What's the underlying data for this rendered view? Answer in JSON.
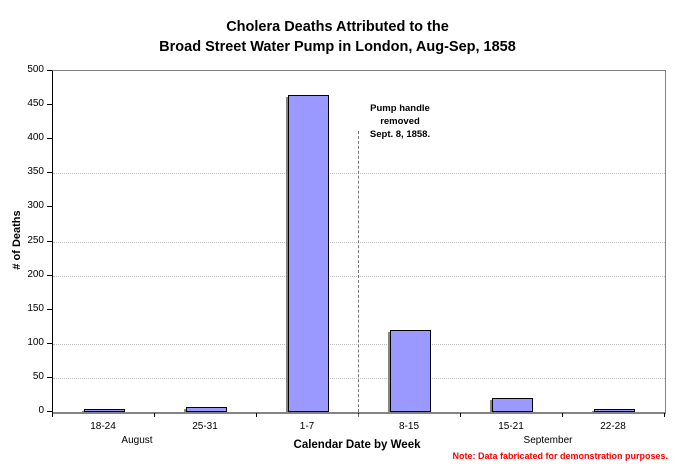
{
  "title": {
    "line1": "Cholera Deaths Attributed to the",
    "line2": "Broad Street Water Pump in London, Aug-Sep, 1858"
  },
  "chart_data": {
    "type": "bar",
    "title": "Cholera Deaths Attributed to the Broad Street Water Pump in London, Aug-Sep, 1858",
    "categories": [
      "18-24",
      "25-31",
      "1-7",
      "8-15",
      "15-21",
      "22-28"
    ],
    "values": [
      5,
      8,
      465,
      120,
      20,
      5
    ],
    "xlabel": "Calendar Date by Week",
    "ylabel": "# of Deaths",
    "ylim": [
      0,
      500
    ],
    "ytick_step": 50,
    "gridlines_at": [
      50,
      100,
      200,
      250,
      350
    ],
    "grid_style": "dotted",
    "legend": "none",
    "bar_color": "#9999FF",
    "bar_border_color": "#000000",
    "bar_shadow_color": "#848484",
    "month_groups": [
      {
        "label": "August",
        "weeks": [
          "18-24",
          "25-31"
        ]
      },
      {
        "label": "September",
        "weeks": [
          "15-21",
          "22-28"
        ]
      }
    ],
    "annotation": {
      "lines": [
        "Pump handle",
        "removed",
        "Sept. 8, 1858."
      ],
      "marker": "dashed-vertical-line",
      "x_boundary_index": 3
    }
  },
  "footnote": {
    "text": "Note: Data fabricated for demonstration purposes.",
    "color": "#FF0000"
  }
}
